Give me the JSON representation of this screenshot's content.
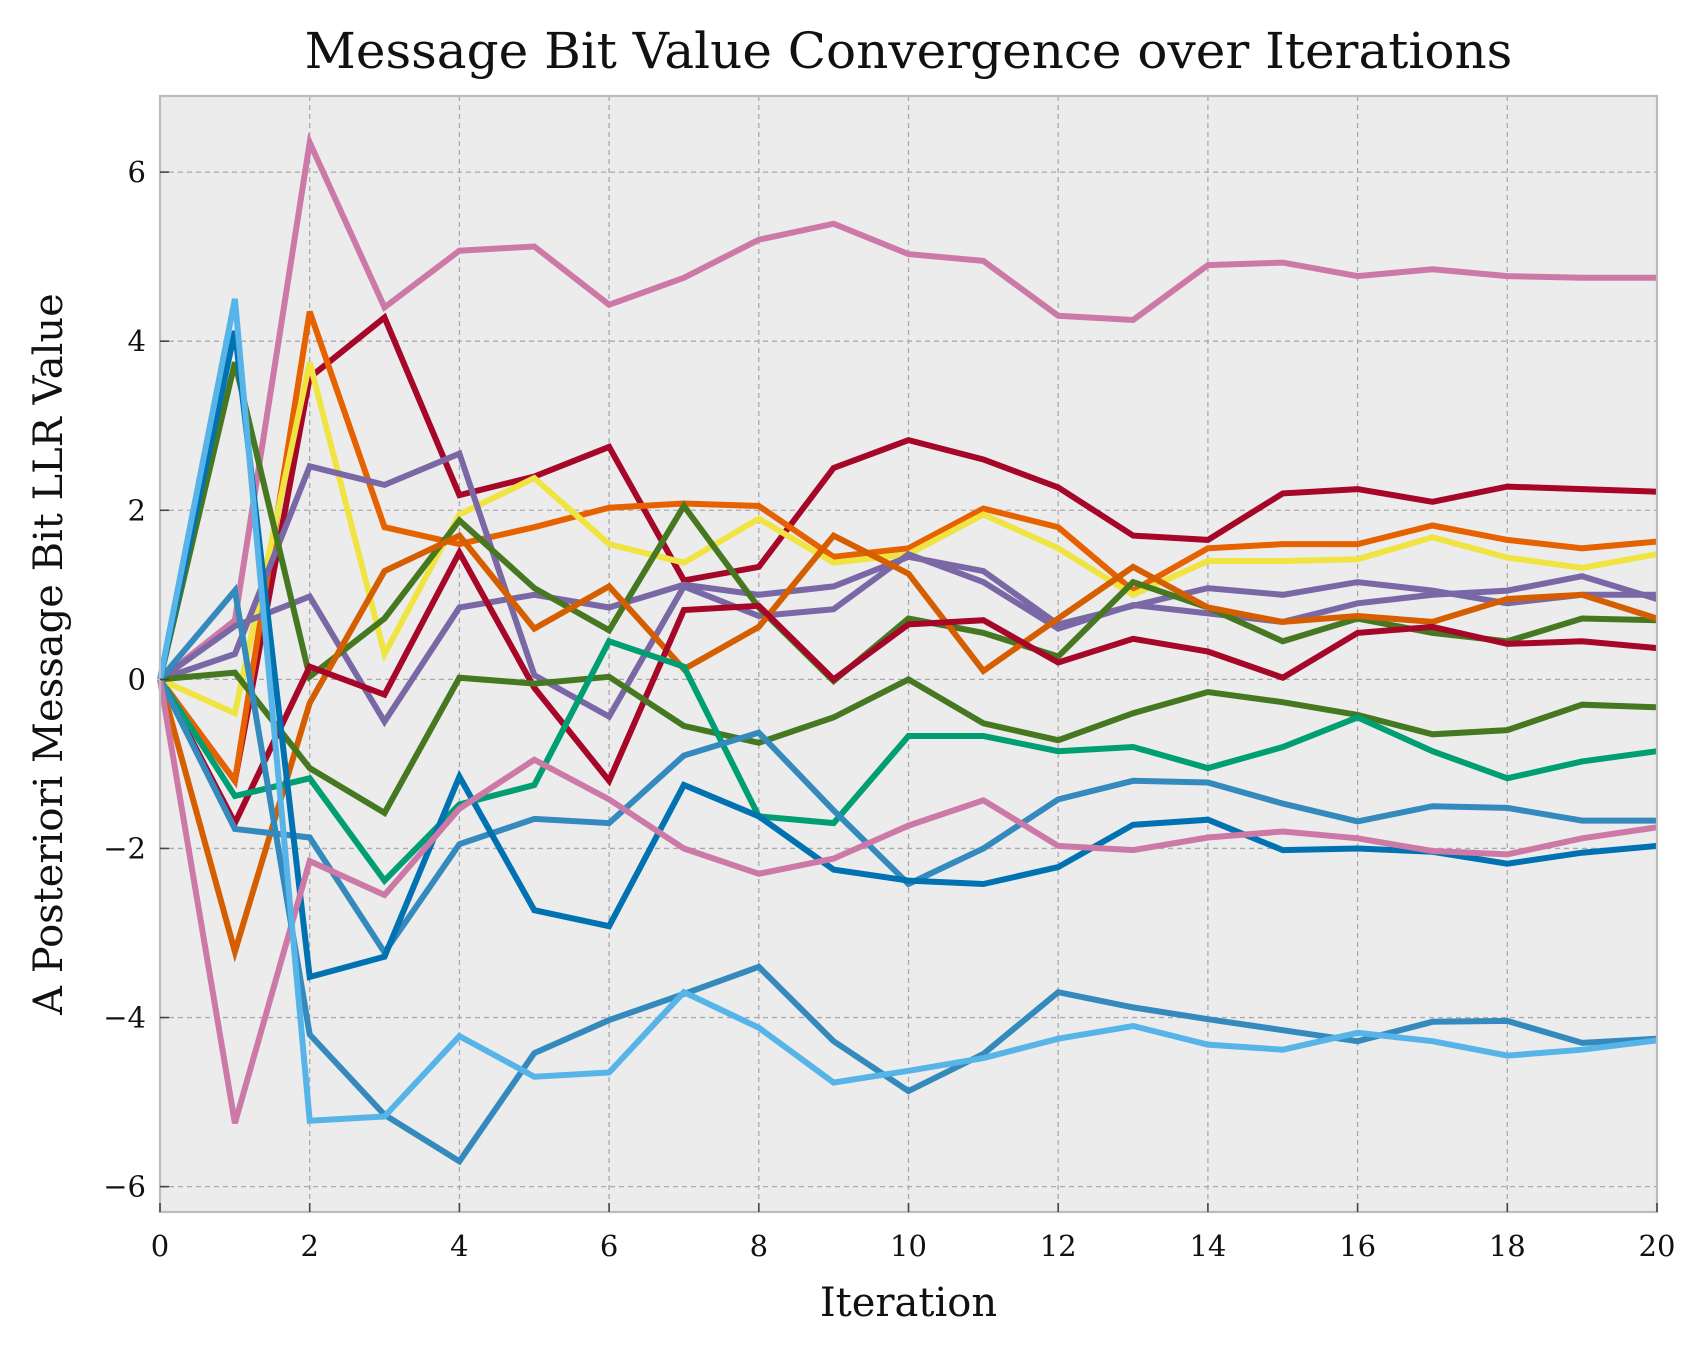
{
  "chart_data": {
    "type": "line",
    "title": "Message Bit Value Convergence over Iterations",
    "xlabel": "Iteration",
    "ylabel": "A Posteriori Message Bit LLR Value",
    "xlim": [
      0,
      20
    ],
    "ylim": [
      -6.3,
      6.9
    ],
    "xticks": [
      0,
      2,
      4,
      6,
      8,
      10,
      12,
      14,
      16,
      18,
      20
    ],
    "yticks": [
      -6,
      -4,
      -2,
      0,
      2,
      4,
      6
    ],
    "ytick_labels": [
      "−6",
      "−4",
      "−2",
      "0",
      "2",
      "4",
      "6"
    ],
    "grid": true,
    "background": "#ececec",
    "x": [
      0,
      1,
      2,
      3,
      4,
      5,
      6,
      7,
      8,
      9,
      10,
      11,
      12,
      13,
      14,
      15,
      16,
      17,
      18,
      19,
      20
    ],
    "series": [
      {
        "color": "#cc79a7",
        "values": [
          0,
          0.7,
          6.35,
          4.4,
          5.07,
          5.12,
          4.43,
          4.75,
          5.2,
          5.39,
          5.03,
          4.95,
          4.3,
          4.25,
          4.9,
          4.93,
          4.77,
          4.85,
          4.77,
          4.75,
          4.75
        ]
      },
      {
        "color": "#a60628",
        "values": [
          0,
          -1.2,
          3.57,
          4.28,
          2.18,
          2.4,
          2.75,
          1.17,
          1.33,
          2.5,
          2.83,
          2.6,
          2.27,
          1.7,
          1.65,
          2.2,
          2.25,
          2.1,
          2.28,
          2.25,
          2.22
        ]
      },
      {
        "color": "#e66100",
        "values": [
          0,
          -1.2,
          4.35,
          1.8,
          1.6,
          1.8,
          2.03,
          2.08,
          2.05,
          1.45,
          1.55,
          2.02,
          1.8,
          1.05,
          1.55,
          1.6,
          1.6,
          1.82,
          1.65,
          1.55,
          1.63
        ]
      },
      {
        "color": "#f0e442",
        "values": [
          0,
          -0.4,
          3.75,
          0.3,
          1.95,
          2.38,
          1.6,
          1.38,
          1.9,
          1.38,
          1.48,
          1.95,
          1.55,
          1.0,
          1.4,
          1.4,
          1.42,
          1.68,
          1.44,
          1.32,
          1.48
        ]
      },
      {
        "color": "#7a68a6",
        "values": [
          0,
          0.3,
          2.52,
          2.3,
          2.67,
          0.05,
          -0.44,
          1.1,
          0.75,
          0.83,
          1.48,
          1.15,
          0.6,
          0.88,
          0.78,
          0.68,
          0.9,
          1.0,
          1.05,
          1.22,
          0.95
        ]
      },
      {
        "color": "#7a68a6",
        "values": [
          0,
          0.63,
          0.98,
          -0.5,
          0.85,
          1.0,
          0.85,
          1.12,
          1.0,
          1.1,
          1.45,
          1.28,
          0.65,
          0.87,
          1.08,
          1.0,
          1.15,
          1.05,
          0.9,
          1.0,
          1.0
        ]
      },
      {
        "color": "#467821",
        "values": [
          0,
          3.75,
          0.03,
          0.72,
          1.88,
          1.08,
          0.58,
          2.05,
          0.85,
          -0.02,
          0.72,
          0.55,
          0.27,
          1.15,
          0.85,
          0.45,
          0.72,
          0.55,
          0.45,
          0.72,
          0.7
        ]
      },
      {
        "color": "#d55e00",
        "values": [
          0,
          -3.22,
          -0.28,
          1.28,
          1.7,
          0.6,
          1.1,
          0.12,
          0.62,
          1.7,
          1.25,
          0.1,
          0.72,
          1.33,
          0.85,
          0.68,
          0.75,
          0.68,
          0.95,
          1.0,
          0.72
        ]
      },
      {
        "color": "#a60628",
        "values": [
          0,
          -1.7,
          0.15,
          -0.18,
          1.5,
          -0.1,
          -1.2,
          0.82,
          0.87,
          0.0,
          0.65,
          0.7,
          0.2,
          0.48,
          0.33,
          0.02,
          0.55,
          0.62,
          0.42,
          0.45,
          0.37
        ]
      },
      {
        "color": "#467821",
        "values": [
          0,
          0.08,
          -1.05,
          -1.58,
          0.02,
          -0.05,
          0.03,
          -0.55,
          -0.75,
          -0.45,
          0.0,
          -0.52,
          -0.72,
          -0.4,
          -0.15,
          -0.27,
          -0.42,
          -0.65,
          -0.6,
          -0.3,
          -0.33
        ]
      },
      {
        "color": "#009e73",
        "values": [
          0,
          -1.38,
          -1.17,
          -2.38,
          -1.48,
          -1.25,
          0.45,
          0.15,
          -1.62,
          -1.7,
          -0.67,
          -0.67,
          -0.85,
          -0.8,
          -1.05,
          -0.8,
          -0.45,
          -0.85,
          -1.17,
          -0.97,
          -0.85
        ]
      },
      {
        "color": "#348abd",
        "values": [
          0,
          -1.77,
          -1.87,
          -3.23,
          -1.95,
          -1.65,
          -1.7,
          -0.9,
          -0.63,
          -1.55,
          -2.42,
          -2.0,
          -1.42,
          -1.2,
          -1.22,
          -1.47,
          -1.68,
          -1.5,
          -1.52,
          -1.67,
          -1.67
        ]
      },
      {
        "color": "#0072b2",
        "values": [
          0,
          4.12,
          -3.52,
          -3.28,
          -1.15,
          -2.73,
          -2.92,
          -1.25,
          -1.62,
          -2.25,
          -2.38,
          -2.42,
          -2.22,
          -1.72,
          -1.66,
          -2.02,
          -2.0,
          -2.04,
          -2.18,
          -2.05,
          -1.97
        ]
      },
      {
        "color": "#cc79a7",
        "values": [
          0,
          -5.25,
          -2.15,
          -2.55,
          -1.53,
          -0.95,
          -1.42,
          -2.0,
          -2.3,
          -2.12,
          -1.73,
          -1.43,
          -1.97,
          -2.02,
          -1.87,
          -1.8,
          -1.88,
          -2.03,
          -2.07,
          -1.88,
          -1.75
        ]
      },
      {
        "color": "#348abd",
        "values": [
          0,
          1.05,
          -4.2,
          -5.15,
          -5.7,
          -4.42,
          -4.03,
          -3.72,
          -3.4,
          -4.28,
          -4.87,
          -4.43,
          -3.7,
          -3.88,
          -4.02,
          -4.15,
          -4.28,
          -4.05,
          -4.04,
          -4.3,
          -4.25
        ]
      },
      {
        "color": "#56b4e9",
        "values": [
          0,
          4.5,
          -5.22,
          -5.17,
          -4.22,
          -4.7,
          -4.65,
          -3.7,
          -4.12,
          -4.77,
          -4.63,
          -4.48,
          -4.25,
          -4.1,
          -4.32,
          -4.38,
          -4.18,
          -4.28,
          -4.45,
          -4.38,
          -4.27
        ]
      }
    ]
  }
}
